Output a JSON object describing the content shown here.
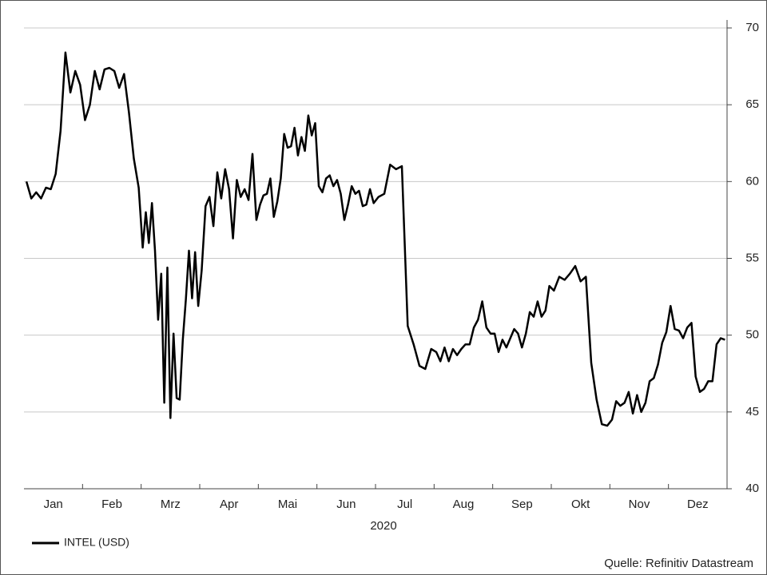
{
  "chart_data": {
    "type": "line",
    "categories": [
      "Jan",
      "Feb",
      "Mrz",
      "Apr",
      "Mai",
      "Jun",
      "Jul",
      "Aug",
      "Sep",
      "Okt",
      "Nov",
      "Dez"
    ],
    "xlabel": "2020",
    "series": [
      {
        "name": "INTEL (USD)",
        "color": "#000000",
        "values": [
          [
            60.0,
            58.9,
            59.3,
            58.9,
            59.6,
            59.5,
            60.5,
            63.3,
            68.4,
            65.8,
            67.2,
            66.3
          ],
          [
            64.0,
            65.0,
            67.2,
            66.0,
            67.3,
            67.4,
            67.2,
            66.1,
            67.0,
            64.5,
            61.5,
            59.6
          ],
          [
            55.7,
            58.0,
            56.0,
            58.6,
            55.5,
            51.0,
            54.0,
            45.6,
            54.4,
            44.6,
            50.1,
            45.9,
            45.8,
            49.7,
            52.3,
            55.5,
            52.4,
            55.4,
            51.9
          ],
          [
            54.2,
            58.4,
            59.0,
            57.1,
            60.6,
            58.9,
            60.8,
            59.5,
            56.3,
            60.1,
            59.0,
            59.5,
            58.8,
            61.8,
            57.5
          ],
          [
            58.5,
            59.1,
            59.2,
            60.2,
            57.7,
            58.7,
            60.2,
            63.1,
            62.2,
            62.3,
            63.5,
            61.7,
            62.9,
            62.0,
            64.3,
            63.0,
            63.8
          ],
          [
            59.7,
            59.3,
            60.2,
            60.4,
            59.7,
            60.1,
            59.2,
            57.5,
            58.5,
            59.7,
            59.2,
            59.4,
            58.4,
            58.5,
            59.5,
            58.6
          ],
          [
            59.0,
            59.2,
            61.1,
            60.8,
            61.0,
            50.6,
            49.4,
            48.0,
            47.8,
            49.1
          ],
          [
            48.9,
            48.3,
            49.2,
            48.3,
            49.1,
            48.7,
            49.1,
            49.4,
            49.4,
            50.5,
            51.0,
            52.2,
            50.5,
            50.1
          ],
          [
            50.1,
            48.9,
            49.7,
            49.2,
            49.8,
            50.4,
            50.1,
            49.2,
            50.1,
            51.5,
            51.2,
            52.2,
            51.2,
            51.6,
            53.2
          ],
          [
            52.9,
            53.8,
            53.6,
            54.0,
            54.5,
            53.5,
            53.8,
            48.2,
            45.8,
            44.2,
            44.1
          ],
          [
            44.5,
            45.7,
            45.4,
            45.6,
            46.3,
            44.9,
            46.1,
            45.0,
            45.6,
            47.0,
            47.2,
            48.1,
            49.5,
            50.2
          ],
          [
            51.9,
            50.4,
            50.3,
            49.8,
            50.5,
            50.8,
            47.3,
            46.3,
            46.5,
            47.0,
            47.0,
            49.4,
            49.8,
            49.7
          ]
        ]
      }
    ],
    "ylim": [
      40,
      70
    ],
    "yticks": [
      40,
      45,
      50,
      55,
      60,
      65,
      70
    ],
    "grid": true,
    "legend": "bottom-left",
    "source": "Quelle: Refinitiv Datastream"
  }
}
